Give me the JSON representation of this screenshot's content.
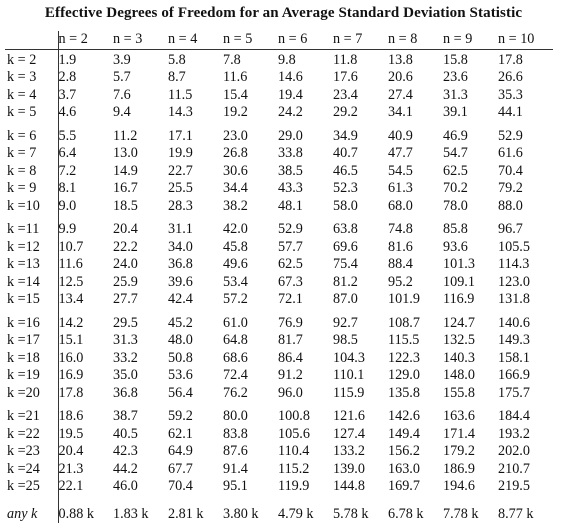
{
  "title": "Effective Degrees of Freedom for an Average Standard Deviation Statistic",
  "columns": [
    "n = 2",
    "n = 3",
    "n = 4",
    "n = 5",
    "n = 6",
    "n = 7",
    "n = 8",
    "n = 9",
    "n = 10"
  ],
  "groups": [
    [
      {
        "k": "k = 2",
        "v": [
          "1.9",
          "3.9",
          "5.8",
          "7.8",
          "9.8",
          "11.8",
          "13.8",
          "15.8",
          "17.8"
        ]
      },
      {
        "k": "k = 3",
        "v": [
          "2.8",
          "5.7",
          "8.7",
          "11.6",
          "14.6",
          "17.6",
          "20.6",
          "23.6",
          "26.6"
        ]
      },
      {
        "k": "k = 4",
        "v": [
          "3.7",
          "7.6",
          "11.5",
          "15.4",
          "19.4",
          "23.4",
          "27.4",
          "31.3",
          "35.3"
        ]
      },
      {
        "k": "k = 5",
        "v": [
          "4.6",
          "9.4",
          "14.3",
          "19.2",
          "24.2",
          "29.2",
          "34.1",
          "39.1",
          "44.1"
        ]
      }
    ],
    [
      {
        "k": "k = 6",
        "v": [
          "5.5",
          "11.2",
          "17.1",
          "23.0",
          "29.0",
          "34.9",
          "40.9",
          "46.9",
          "52.9"
        ]
      },
      {
        "k": "k = 7",
        "v": [
          "6.4",
          "13.0",
          "19.9",
          "26.8",
          "33.8",
          "40.7",
          "47.7",
          "54.7",
          "61.6"
        ]
      },
      {
        "k": "k = 8",
        "v": [
          "7.2",
          "14.9",
          "22.7",
          "30.6",
          "38.5",
          "46.5",
          "54.5",
          "62.5",
          "70.4"
        ]
      },
      {
        "k": "k = 9",
        "v": [
          "8.1",
          "16.7",
          "25.5",
          "34.4",
          "43.3",
          "52.3",
          "61.3",
          "70.2",
          "79.2"
        ]
      },
      {
        "k": "k =10",
        "v": [
          "9.0",
          "18.5",
          "28.3",
          "38.2",
          "48.1",
          "58.0",
          "68.0",
          "78.0",
          "88.0"
        ]
      }
    ],
    [
      {
        "k": "k =11",
        "v": [
          "9.9",
          "20.4",
          "31.1",
          "42.0",
          "52.9",
          "63.8",
          "74.8",
          "85.8",
          "96.7"
        ]
      },
      {
        "k": "k =12",
        "v": [
          "10.7",
          "22.2",
          "34.0",
          "45.8",
          "57.7",
          "69.6",
          "81.6",
          "93.6",
          "105.5"
        ]
      },
      {
        "k": "k =13",
        "v": [
          "11.6",
          "24.0",
          "36.8",
          "49.6",
          "62.5",
          "75.4",
          "88.4",
          "101.3",
          "114.3"
        ]
      },
      {
        "k": "k =14",
        "v": [
          "12.5",
          "25.9",
          "39.6",
          "53.4",
          "67.3",
          "81.2",
          "95.2",
          "109.1",
          "123.0"
        ]
      },
      {
        "k": "k =15",
        "v": [
          "13.4",
          "27.7",
          "42.4",
          "57.2",
          "72.1",
          "87.0",
          "101.9",
          "116.9",
          "131.8"
        ]
      }
    ],
    [
      {
        "k": "k =16",
        "v": [
          "14.2",
          "29.5",
          "45.2",
          "61.0",
          "76.9",
          "92.7",
          "108.7",
          "124.7",
          "140.6"
        ]
      },
      {
        "k": "k =17",
        "v": [
          "15.1",
          "31.3",
          "48.0",
          "64.8",
          "81.7",
          "98.5",
          "115.5",
          "132.5",
          "149.3"
        ]
      },
      {
        "k": "k =18",
        "v": [
          "16.0",
          "33.2",
          "50.8",
          "68.6",
          "86.4",
          "104.3",
          "122.3",
          "140.3",
          "158.1"
        ]
      },
      {
        "k": "k =19",
        "v": [
          "16.9",
          "35.0",
          "53.6",
          "72.4",
          "91.2",
          "110.1",
          "129.0",
          "148.0",
          "166.9"
        ]
      },
      {
        "k": "k =20",
        "v": [
          "17.8",
          "36.8",
          "56.4",
          "76.2",
          "96.0",
          "115.9",
          "135.8",
          "155.8",
          "175.7"
        ]
      }
    ],
    [
      {
        "k": "k =21",
        "v": [
          "18.6",
          "38.7",
          "59.2",
          "80.0",
          "100.8",
          "121.6",
          "142.6",
          "163.6",
          "184.4"
        ]
      },
      {
        "k": "k =22",
        "v": [
          "19.5",
          "40.5",
          "62.1",
          "83.8",
          "105.6",
          "127.4",
          "149.4",
          "171.4",
          "193.2"
        ]
      },
      {
        "k": "k =23",
        "v": [
          "20.4",
          "42.3",
          "64.9",
          "87.6",
          "110.4",
          "133.2",
          "156.2",
          "179.2",
          "202.0"
        ]
      },
      {
        "k": "k =24",
        "v": [
          "21.3",
          "44.2",
          "67.7",
          "91.4",
          "115.2",
          "139.0",
          "163.0",
          "186.9",
          "210.7"
        ]
      },
      {
        "k": "k =25",
        "v": [
          "22.1",
          "46.0",
          "70.4",
          "95.1",
          "119.9",
          "144.8",
          "169.7",
          "194.6",
          "219.5"
        ]
      }
    ]
  ],
  "any_row": {
    "k": "any k",
    "v": [
      "0.88 k",
      "1.83 k",
      "2.81 k",
      "3.80 k",
      "4.79 k",
      "5.78 k",
      "6.78 k",
      "7.78 k",
      "8.77 k"
    ]
  }
}
